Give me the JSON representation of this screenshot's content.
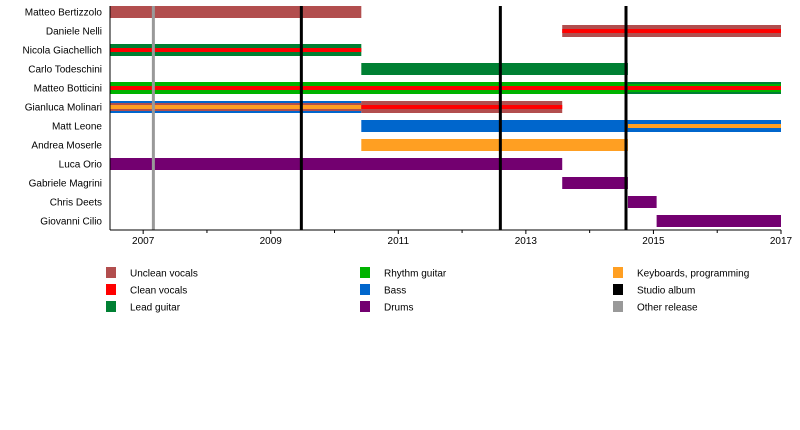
{
  "chart_data": {
    "type": "timeline",
    "title": "",
    "xlim": [
      2006.48,
      2017
    ],
    "x_ticks": [
      2007,
      2008,
      2009,
      2010,
      2011,
      2012,
      2013,
      2014,
      2015,
      2016,
      2017
    ],
    "x_tick_labels": [
      "2007",
      "2009",
      "2011",
      "2013",
      "2015",
      "2017"
    ],
    "roles": {
      "unclean": {
        "label": "Unclean vocals",
        "color": "#B24E4E"
      },
      "clean": {
        "label": "Clean vocals",
        "color": "#FF0000"
      },
      "lead": {
        "label": "Lead guitar",
        "color": "#008033"
      },
      "rhythm": {
        "label": "Rhythm guitar",
        "color": "#00B300"
      },
      "bass": {
        "label": "Bass",
        "color": "#0066CC"
      },
      "drums": {
        "label": "Drums",
        "color": "#730070"
      },
      "keys": {
        "label": "Keyboards, programming",
        "color": "#FF9F22"
      },
      "studio": {
        "label": "Studio album",
        "color": "#000000"
      },
      "other": {
        "label": "Other release",
        "color": "#999999"
      }
    },
    "legend_order": [
      "unclean",
      "clean",
      "lead",
      "rhythm",
      "bass",
      "drums",
      "keys",
      "studio",
      "other"
    ],
    "members": [
      {
        "name": "Matteo Bertizzolo",
        "segments": [
          {
            "from": 2006.48,
            "to": 2010.42,
            "roles": [
              "unclean"
            ]
          }
        ]
      },
      {
        "name": "Daniele Nelli",
        "segments": [
          {
            "from": 2013.57,
            "to": 2017,
            "roles": [
              "unclean",
              "clean"
            ]
          }
        ]
      },
      {
        "name": "Nicola Giachellich",
        "segments": [
          {
            "from": 2006.48,
            "to": 2010.42,
            "roles": [
              "lead",
              "clean"
            ]
          }
        ]
      },
      {
        "name": "Carlo Todeschini",
        "segments": [
          {
            "from": 2010.42,
            "to": 2014.6,
            "roles": [
              "lead"
            ]
          }
        ]
      },
      {
        "name": "Matteo Botticini",
        "segments": [
          {
            "from": 2006.48,
            "to": 2014.6,
            "roles": [
              "rhythm",
              "clean"
            ]
          },
          {
            "from": 2014.6,
            "to": 2017,
            "roles": [
              "lead",
              "rhythm",
              "clean"
            ]
          }
        ]
      },
      {
        "name": "Gianluca Molinari",
        "segments": [
          {
            "from": 2006.48,
            "to": 2010.42,
            "roles": [
              "bass",
              "unclean",
              "keys"
            ]
          },
          {
            "from": 2010.42,
            "to": 2013.57,
            "roles": [
              "unclean",
              "clean"
            ]
          }
        ]
      },
      {
        "name": "Matt Leone",
        "segments": [
          {
            "from": 2010.42,
            "to": 2017,
            "roles": [
              "bass"
            ]
          },
          {
            "from": 2014.6,
            "to": 2017,
            "roles": [
              "bass",
              "keys"
            ]
          }
        ]
      },
      {
        "name": "Andrea Moserle",
        "segments": [
          {
            "from": 2010.42,
            "to": 2014.6,
            "roles": [
              "keys"
            ]
          }
        ]
      },
      {
        "name": "Luca Orio",
        "segments": [
          {
            "from": 2006.48,
            "to": 2013.57,
            "roles": [
              "drums"
            ]
          }
        ]
      },
      {
        "name": "Gabriele Magrini",
        "segments": [
          {
            "from": 2013.57,
            "to": 2014.6,
            "roles": [
              "drums"
            ]
          }
        ]
      },
      {
        "name": "Chris Deets",
        "segments": [
          {
            "from": 2014.6,
            "to": 2015.05,
            "roles": [
              "drums"
            ]
          }
        ]
      },
      {
        "name": "Giovanni Cilio",
        "segments": [
          {
            "from": 2015.05,
            "to": 2017,
            "roles": [
              "drums"
            ]
          }
        ]
      }
    ],
    "releases": [
      {
        "type": "other",
        "date": 2007.16
      },
      {
        "type": "studio",
        "date": 2009.48
      },
      {
        "type": "studio",
        "date": 2012.6
      },
      {
        "type": "studio",
        "date": 2014.57
      }
    ]
  }
}
